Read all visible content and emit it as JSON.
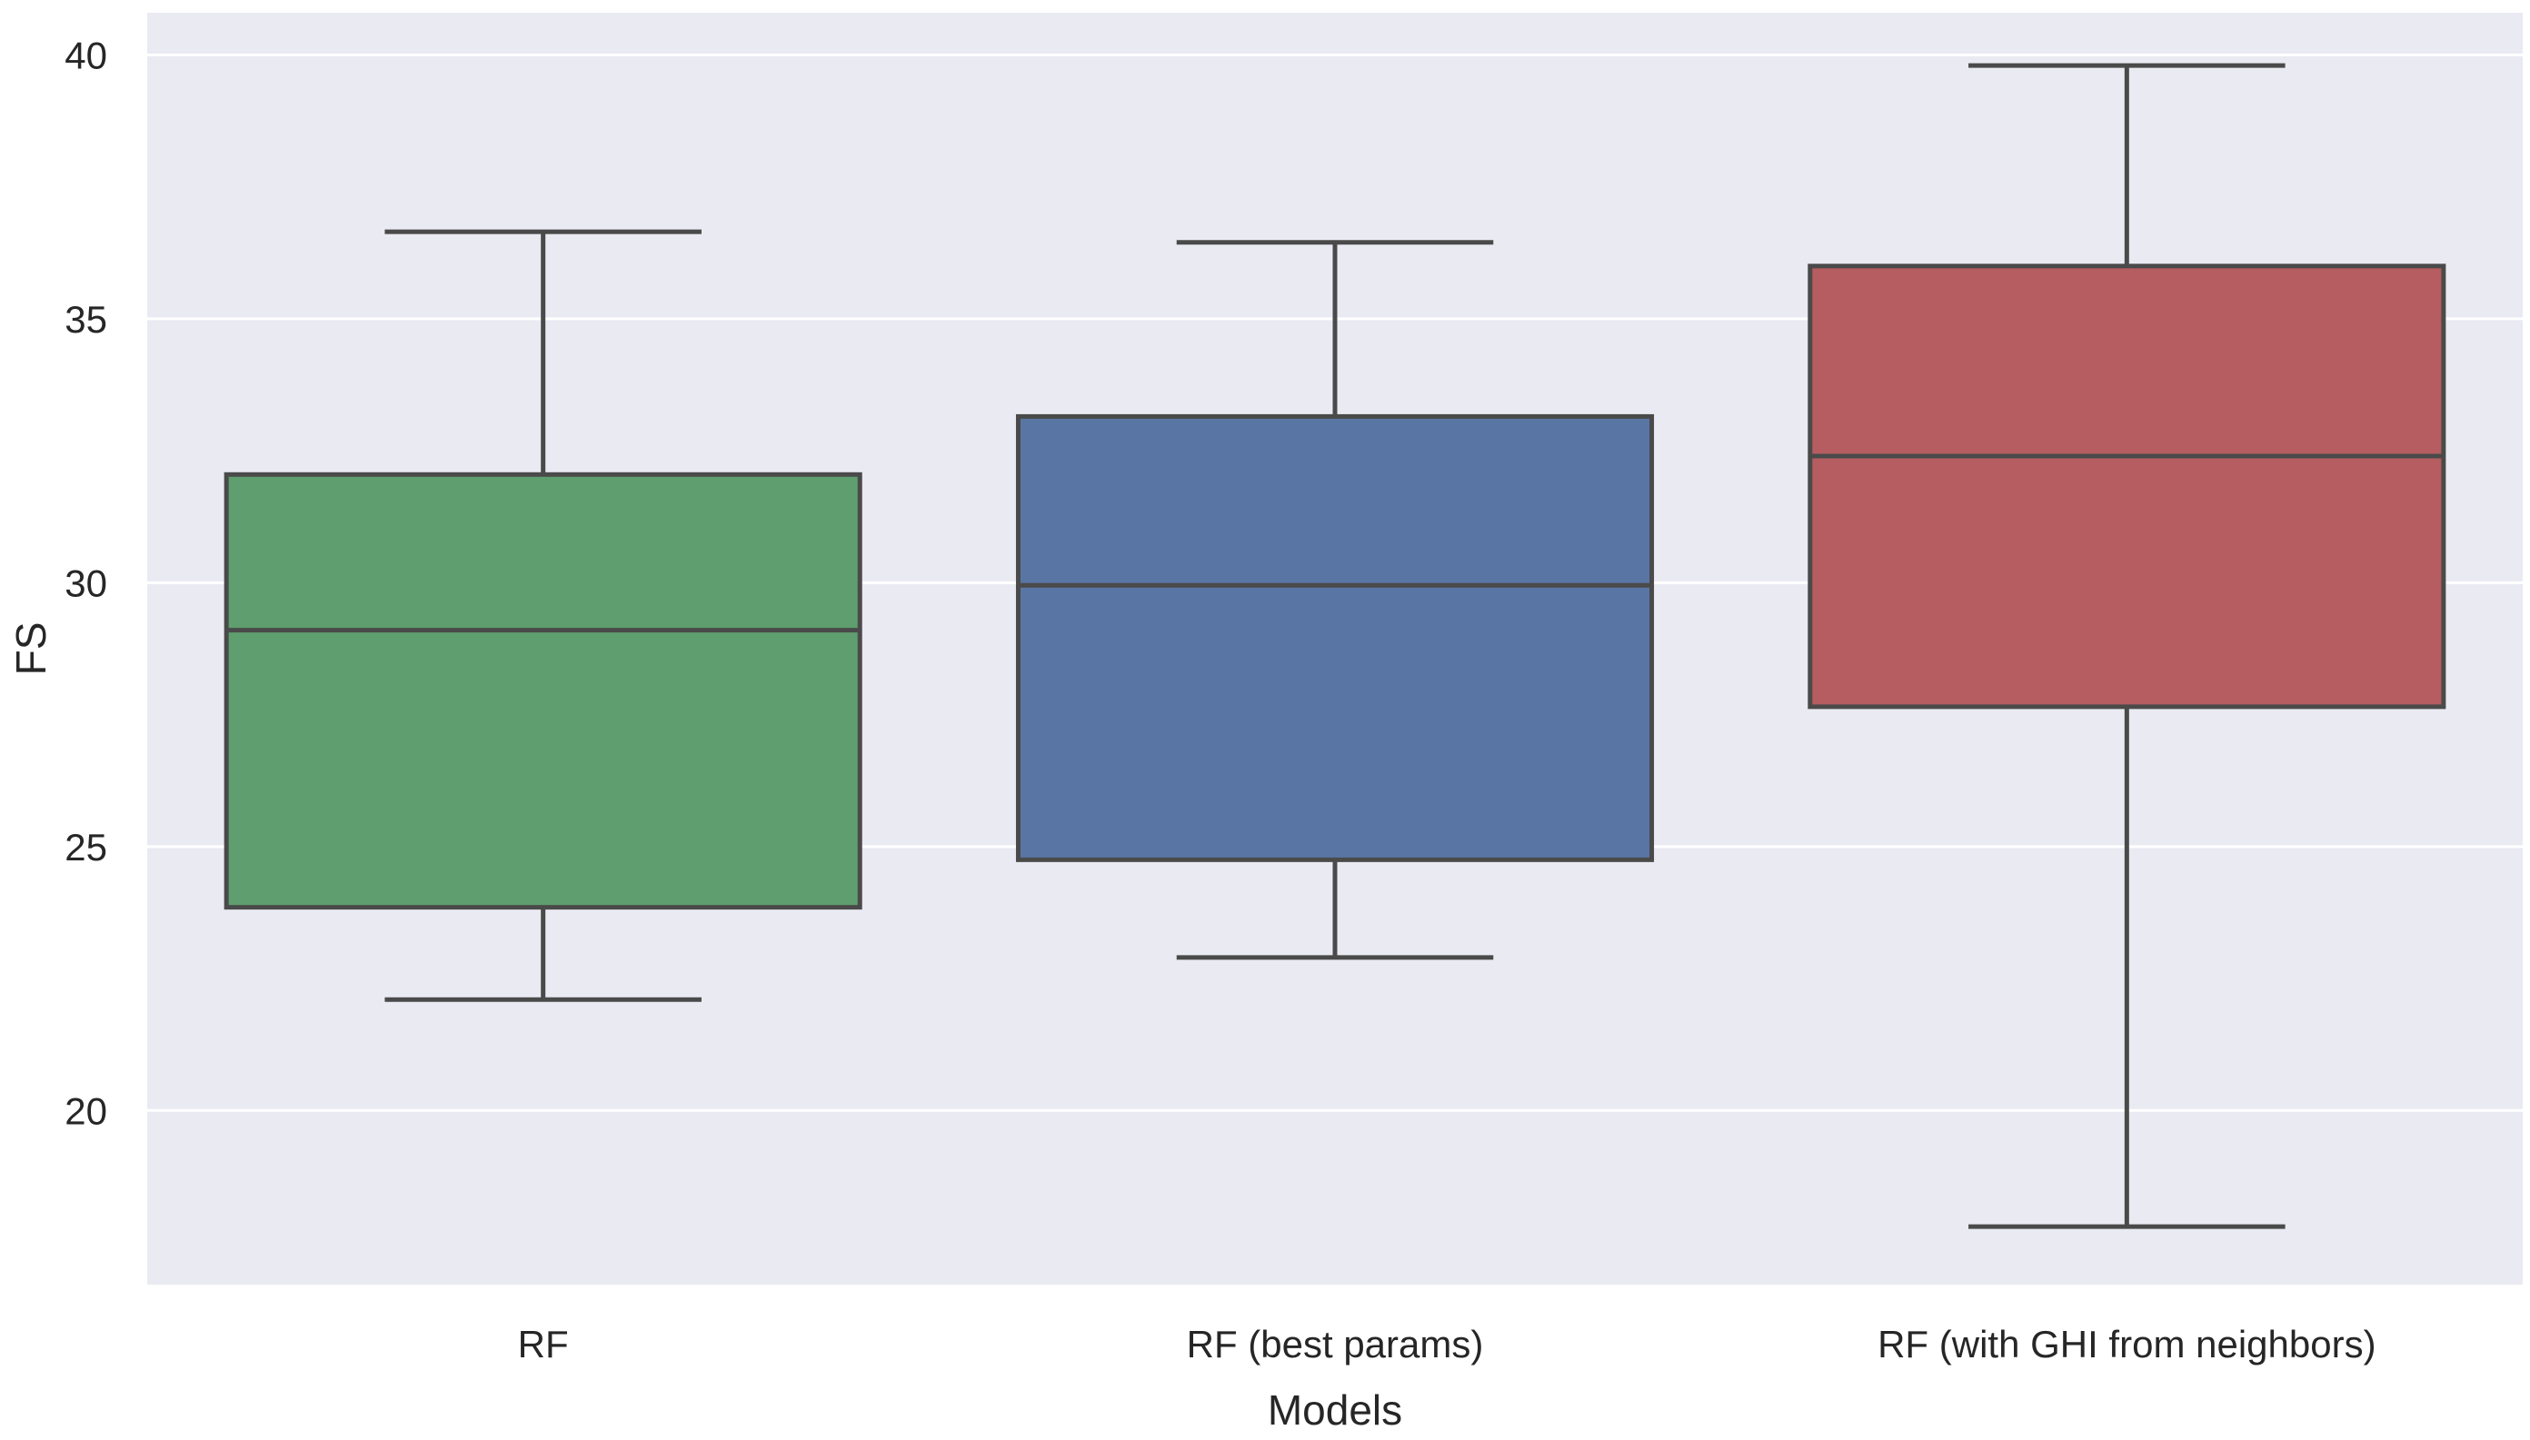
{
  "chart_data": {
    "type": "box",
    "title": "",
    "xlabel": "Models",
    "ylabel": "FS",
    "ylim": [
      16.7,
      40.8
    ],
    "yticks": [
      20,
      25,
      30,
      35,
      40
    ],
    "grid": true,
    "categories": [
      "RF",
      "RF (best params)",
      "RF (with GHI from neighbors)"
    ],
    "series": [
      {
        "name": "RF",
        "color": "#5f9e6e",
        "min": 22.1,
        "q1": 23.85,
        "median": 29.1,
        "q3": 32.05,
        "max": 36.65
      },
      {
        "name": "RF (best params)",
        "color": "#5975a4",
        "min": 22.9,
        "q1": 24.75,
        "median": 29.95,
        "q3": 33.15,
        "max": 36.45
      },
      {
        "name": "RF (with GHI from neighbors)",
        "color": "#b55d60",
        "min": 17.8,
        "q1": 27.65,
        "median": 32.4,
        "q3": 36.0,
        "max": 39.8
      }
    ]
  },
  "colors": {
    "plot_background": "#eaeaf2",
    "grid": "#ffffff",
    "box_edge": "#4a4a4a"
  }
}
